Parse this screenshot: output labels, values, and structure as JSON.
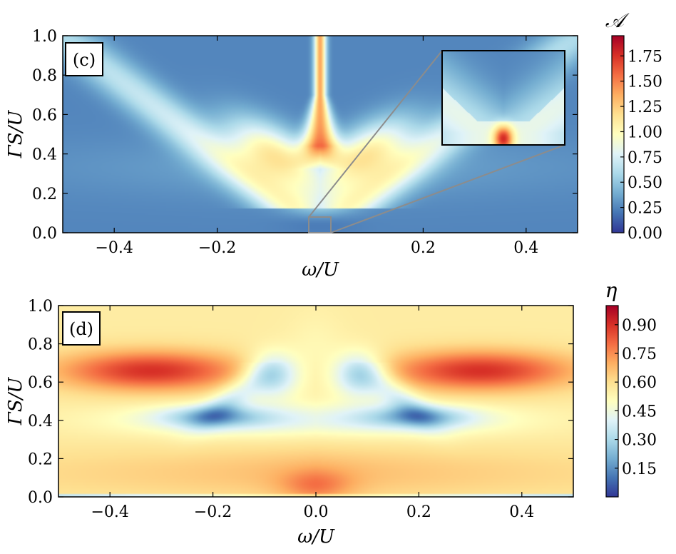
{
  "chart_data": [
    {
      "type": "heatmap",
      "panel_label": "(c)",
      "xlabel": "ω/U",
      "ylabel": "ΓS/U",
      "xlim": [
        -0.5,
        0.5
      ],
      "ylim": [
        0.0,
        1.0
      ],
      "xticks": [
        -0.4,
        -0.2,
        0.2,
        0.4
      ],
      "xtick_labels": [
        "−0.4",
        "−0.2",
        "0.2",
        "0.4"
      ],
      "yticks": [
        0.0,
        0.2,
        0.4,
        0.6,
        0.8,
        1.0
      ],
      "ytick_labels": [
        "0.0",
        "0.2",
        "0.4",
        "0.6",
        "0.8",
        "1.0"
      ],
      "colorbar": {
        "title": "𝒜",
        "range": [
          0.0,
          1.95
        ],
        "ticks": [
          0.0,
          0.25,
          0.5,
          0.75,
          1.0,
          1.25,
          1.5,
          1.75
        ],
        "tick_labels": [
          "0.00",
          "0.25",
          "0.50",
          "0.75",
          "1.00",
          "1.25",
          "1.50",
          "1.75"
        ],
        "colormap": "RdYlBu_r"
      },
      "inset": {
        "source_x_range": [
          -0.02,
          0.02
        ],
        "source_y_range": [
          0.0,
          0.08
        ]
      }
    },
    {
      "type": "heatmap",
      "panel_label": "(d)",
      "xlabel": "ω/U",
      "ylabel": "ΓS/U",
      "xlim": [
        -0.5,
        0.5
      ],
      "ylim": [
        0.0,
        1.0
      ],
      "xticks": [
        -0.4,
        -0.2,
        0.0,
        0.2,
        0.4
      ],
      "xtick_labels": [
        "−0.4",
        "−0.2",
        "0.0",
        "0.2",
        "0.4"
      ],
      "yticks": [
        0.0,
        0.2,
        0.4,
        0.6,
        0.8,
        1.0
      ],
      "ytick_labels": [
        "0.0",
        "0.2",
        "0.4",
        "0.6",
        "0.8",
        "1.0"
      ],
      "colorbar": {
        "title": "η",
        "range": [
          0.0,
          1.0
        ],
        "ticks": [
          0.15,
          0.3,
          0.45,
          0.6,
          0.75,
          0.9
        ],
        "tick_labels": [
          "0.15",
          "0.30",
          "0.45",
          "0.60",
          "0.75",
          "0.90"
        ],
        "colormap": "RdYlBu_r"
      }
    }
  ],
  "colors": {
    "colormap_stops": [
      "#313695",
      "#4575b4",
      "#74add1",
      "#abd9e9",
      "#e0f3f8",
      "#ffffbf",
      "#fee090",
      "#fdae61",
      "#f46d43",
      "#d73027",
      "#a50026"
    ],
    "inset_connector": "#8c8c8c"
  }
}
